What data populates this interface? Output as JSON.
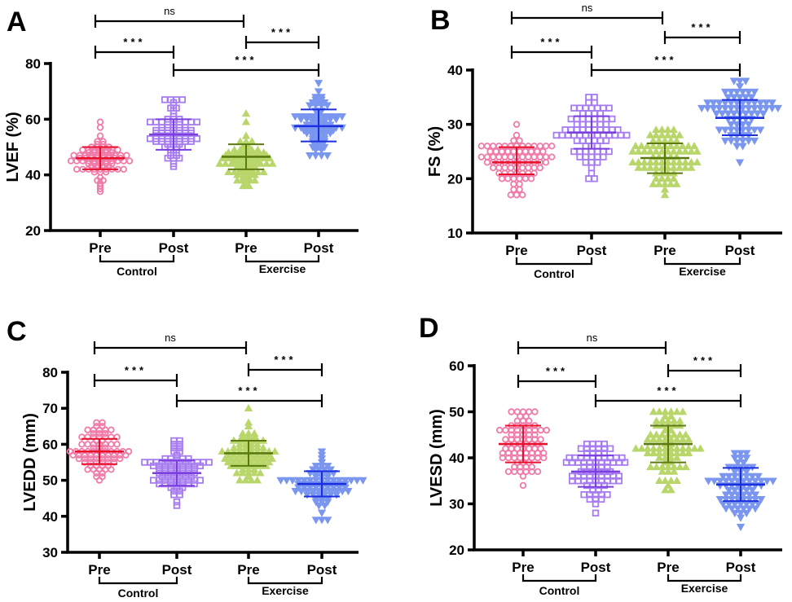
{
  "categories": [
    "Pre",
    "Post",
    "Pre",
    "Post"
  ],
  "group_labels": [
    "Control",
    "Exercise"
  ],
  "series_colors": {
    "marker": [
      "#f07aa8",
      "#a77cf0",
      "#b8d66a",
      "#7a96ee"
    ],
    "line": [
      "#e8102a",
      "#7b3fe0",
      "#5a7a10",
      "#1a2fe0"
    ]
  },
  "marker_shapes": [
    "circle",
    "square",
    "triangle-up",
    "triangle-down"
  ],
  "chart_data": [
    {
      "panel": "A",
      "type": "scatter",
      "ylabel": "LVEF (%)",
      "ylim": [
        20,
        80
      ],
      "yticks": [
        "20",
        "40",
        "60",
        "80"
      ],
      "groups": [
        {
          "name": "Control Pre",
          "mean": 46,
          "sd_low": 42,
          "sd_high": 50,
          "min": 34,
          "max": 59
        },
        {
          "name": "Control Post",
          "mean": 54.5,
          "sd_low": 49,
          "sd_high": 60,
          "min": 43,
          "max": 67
        },
        {
          "name": "Exercise Pre",
          "mean": 46.5,
          "sd_low": 42,
          "sd_high": 51,
          "min": 36,
          "max": 62
        },
        {
          "name": "Exercise Post",
          "mean": 57.5,
          "sd_low": 52,
          "sd_high": 63.5,
          "min": 47,
          "max": 73
        }
      ],
      "comparisons": [
        {
          "pair": [
            0,
            2
          ],
          "label": "ns"
        },
        {
          "pair": [
            0,
            1
          ],
          "label": "***"
        },
        {
          "pair": [
            2,
            3
          ],
          "label": "***"
        },
        {
          "pair": [
            1,
            3
          ],
          "label": "***"
        }
      ]
    },
    {
      "panel": "B",
      "type": "scatter",
      "ylabel": "FS (%)",
      "ylim": [
        10,
        40
      ],
      "yticks": [
        "10",
        "20",
        "30",
        "40"
      ],
      "groups": [
        {
          "name": "Control Pre",
          "mean": 23,
          "sd_low": 20.8,
          "sd_high": 25.8,
          "min": 17,
          "max": 30
        },
        {
          "name": "Control Post",
          "mean": 28.5,
          "sd_low": 25.5,
          "sd_high": 31.5,
          "min": 20,
          "max": 35
        },
        {
          "name": "Exercise Pre",
          "mean": 23.8,
          "sd_low": 21,
          "sd_high": 26.5,
          "min": 17,
          "max": 29
        },
        {
          "name": "Exercise Post",
          "mean": 31.2,
          "sd_low": 28,
          "sd_high": 34.5,
          "min": 23,
          "max": 38
        }
      ],
      "comparisons": [
        {
          "pair": [
            0,
            2
          ],
          "label": "ns"
        },
        {
          "pair": [
            0,
            1
          ],
          "label": "***"
        },
        {
          "pair": [
            2,
            3
          ],
          "label": "***"
        },
        {
          "pair": [
            1,
            3
          ],
          "label": "***"
        }
      ]
    },
    {
      "panel": "C",
      "type": "scatter",
      "ylabel": "LVEDD (mm)",
      "ylim": [
        30,
        80
      ],
      "yticks": [
        "30",
        "40",
        "50",
        "60",
        "70",
        "80"
      ],
      "groups": [
        {
          "name": "Control Pre",
          "mean": 58,
          "sd_low": 54.5,
          "sd_high": 61.5,
          "min": 50,
          "max": 66
        },
        {
          "name": "Control Post",
          "mean": 52,
          "sd_low": 48.5,
          "sd_high": 55.5,
          "min": 43,
          "max": 61
        },
        {
          "name": "Exercise Pre",
          "mean": 57.5,
          "sd_low": 54,
          "sd_high": 61,
          "min": 50,
          "max": 70
        },
        {
          "name": "Exercise Post",
          "mean": 49,
          "sd_low": 45.5,
          "sd_high": 52.5,
          "min": 39,
          "max": 58
        }
      ],
      "comparisons": [
        {
          "pair": [
            0,
            2
          ],
          "label": "ns"
        },
        {
          "pair": [
            0,
            1
          ],
          "label": "***"
        },
        {
          "pair": [
            2,
            3
          ],
          "label": "***"
        },
        {
          "pair": [
            1,
            3
          ],
          "label": "***"
        }
      ]
    },
    {
      "panel": "D",
      "type": "scatter",
      "ylabel": "LVESD (mm)",
      "ylim": [
        20,
        60
      ],
      "yticks": [
        "20",
        "30",
        "40",
        "50",
        "60"
      ],
      "groups": [
        {
          "name": "Control Pre",
          "mean": 43,
          "sd_low": 39,
          "sd_high": 47,
          "min": 34,
          "max": 50
        },
        {
          "name": "Control Post",
          "mean": 37,
          "sd_low": 33.7,
          "sd_high": 40.5,
          "min": 28,
          "max": 43
        },
        {
          "name": "Exercise Pre",
          "mean": 43,
          "sd_low": 39,
          "sd_high": 47,
          "min": 33,
          "max": 50
        },
        {
          "name": "Exercise Post",
          "mean": 34.2,
          "sd_low": 30.6,
          "sd_high": 37.8,
          "min": 25,
          "max": 41
        }
      ],
      "comparisons": [
        {
          "pair": [
            0,
            2
          ],
          "label": "ns"
        },
        {
          "pair": [
            0,
            1
          ],
          "label": "***"
        },
        {
          "pair": [
            2,
            3
          ],
          "label": "***"
        },
        {
          "pair": [
            1,
            3
          ],
          "label": "***"
        }
      ]
    }
  ]
}
